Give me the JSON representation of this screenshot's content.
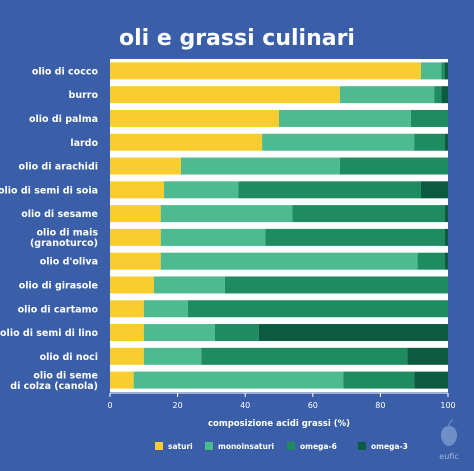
{
  "logo": {
    "text": "eufic"
  },
  "colors": {
    "background": "#3a5fa8",
    "plot_bg": "#ffffff",
    "saturi": "#f9cd2f",
    "monoinsaturi": "#4dbb8f",
    "omega6": "#1f8b60",
    "omega3": "#0c5a40"
  },
  "chart_data": {
    "type": "bar",
    "orientation": "horizontal",
    "stacked": true,
    "title": "oli e grassi culinari",
    "xlabel": "composizione acidi grassi (%)",
    "ylabel": "",
    "xlim": [
      0,
      100
    ],
    "xticks": [
      "0",
      "20",
      "40",
      "60",
      "80",
      "100"
    ],
    "grid": false,
    "legend_position": "bottom",
    "categories": [
      [
        "olio di cocco"
      ],
      [
        "burro"
      ],
      [
        "olio di palma"
      ],
      [
        "lardo"
      ],
      [
        "olio di arachidi"
      ],
      [
        "olio di semi di soia"
      ],
      [
        "olio di sesame"
      ],
      [
        "olio di mais",
        "(granoturco)"
      ],
      [
        "olio d'oliva"
      ],
      [
        "olio di girasole"
      ],
      [
        "olio di cartamo"
      ],
      [
        "olio di semi di lino"
      ],
      [
        "olio di noci"
      ],
      [
        "olio di seme",
        "di colza (canola)"
      ]
    ],
    "series": [
      {
        "name": "saturi",
        "color": "#f9cd2f",
        "values": [
          92,
          68,
          50,
          45,
          21,
          16,
          15,
          15,
          15,
          13,
          10,
          10,
          10,
          7
        ]
      },
      {
        "name": "monoinsaturi",
        "color": "#4dbb8f",
        "values": [
          6,
          28,
          39,
          45,
          47,
          22,
          39,
          31,
          76,
          21,
          13,
          21,
          17,
          62
        ]
      },
      {
        "name": "omega-6",
        "color": "#1f8b60",
        "values": [
          1,
          2,
          11,
          9,
          32,
          54,
          45,
          53,
          8,
          66,
          77,
          13,
          61,
          21
        ]
      },
      {
        "name": "omega-3",
        "color": "#0c5a40",
        "values": [
          1,
          2,
          0,
          1,
          0,
          8,
          1,
          1,
          1,
          0,
          0,
          56,
          12,
          10
        ]
      }
    ]
  }
}
